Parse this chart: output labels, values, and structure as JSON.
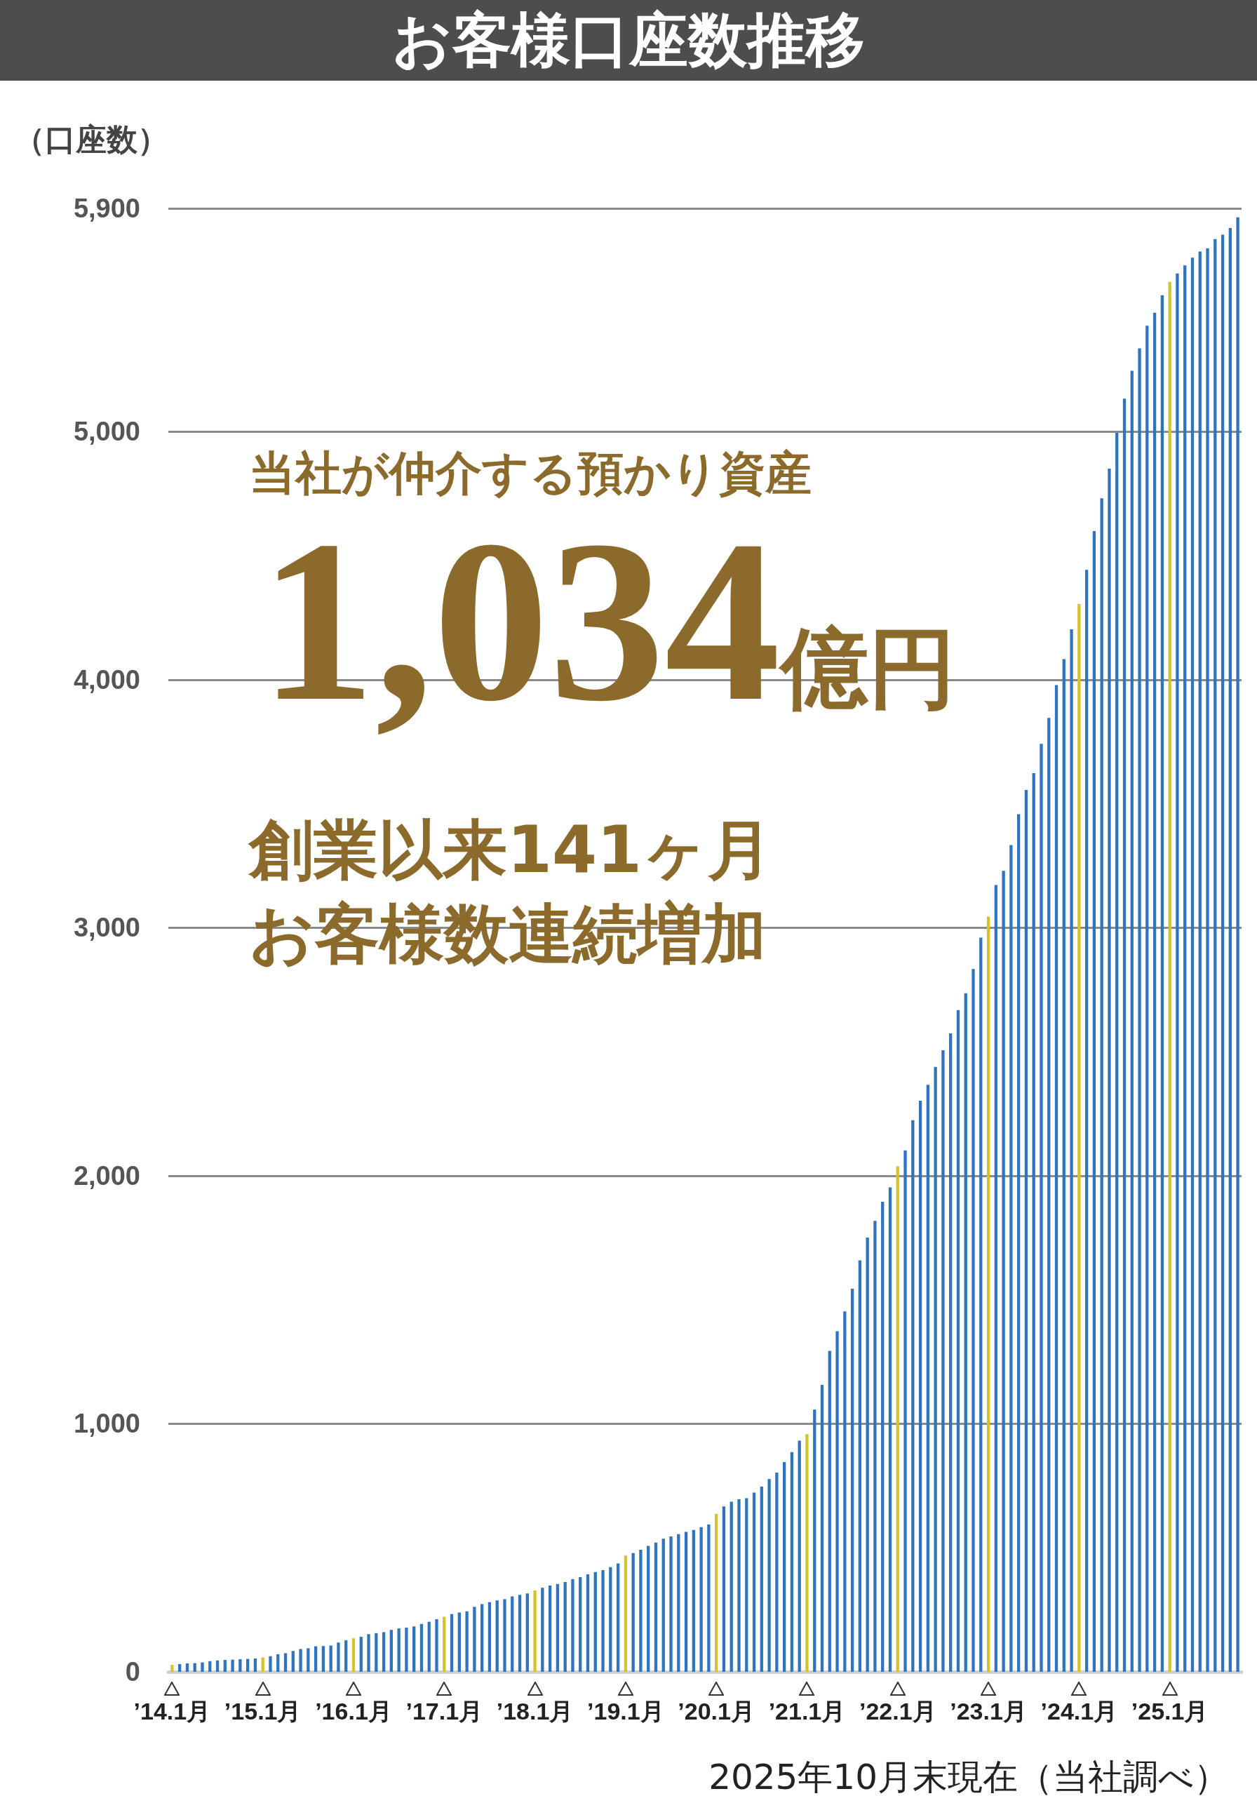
{
  "chart_data": {
    "type": "bar",
    "title": "お客様口座数推移",
    "ylabel": "（口座数）",
    "annotations": [
      "当社が仲介する預かり資産",
      "1,034億円",
      "創業以来141ヶ月",
      "お客様数連続増加",
      "2025年10月末現在（当社調べ）"
    ],
    "categories": [
      "’14.1月",
      null,
      null,
      null,
      null,
      null,
      null,
      null,
      null,
      null,
      null,
      null,
      "’15.1月",
      null,
      null,
      null,
      null,
      null,
      null,
      null,
      null,
      null,
      null,
      null,
      "’16.1月",
      null,
      null,
      null,
      null,
      null,
      null,
      null,
      null,
      null,
      null,
      null,
      "’17.1月",
      null,
      null,
      null,
      null,
      null,
      null,
      null,
      null,
      null,
      null,
      null,
      "’18.1月",
      null,
      null,
      null,
      null,
      null,
      null,
      null,
      null,
      null,
      null,
      null,
      "’19.1月",
      null,
      null,
      null,
      null,
      null,
      null,
      null,
      null,
      null,
      null,
      null,
      "’20.1月",
      null,
      null,
      null,
      null,
      null,
      null,
      null,
      null,
      null,
      null,
      null,
      "’21.1月",
      null,
      null,
      null,
      null,
      null,
      null,
      null,
      null,
      null,
      null,
      null,
      "’22.1月",
      null,
      null,
      null,
      null,
      null,
      null,
      null,
      null,
      null,
      null,
      null,
      "’23.1月",
      null,
      null,
      null,
      null,
      null,
      null,
      null,
      null,
      null,
      null,
      null,
      "’24.1月",
      null,
      null,
      null,
      null,
      null,
      null,
      null,
      null,
      null,
      null,
      null,
      "’25.1月",
      null,
      null,
      null,
      null,
      null,
      null,
      null,
      null,
      null
    ],
    "values": [
      28,
      31,
      34,
      35,
      38,
      43,
      46,
      48,
      49,
      51,
      52,
      54,
      58,
      63,
      71,
      75,
      84,
      92,
      95,
      103,
      104,
      106,
      118,
      127,
      135,
      141,
      152,
      156,
      160,
      169,
      175,
      178,
      183,
      193,
      202,
      212,
      222,
      233,
      239,
      244,
      262,
      273,
      281,
      288,
      293,
      304,
      310,
      316,
      328,
      339,
      348,
      354,
      362,
      373,
      382,
      393,
      402,
      410,
      422,
      437,
      469,
      479,
      492,
      508,
      521,
      537,
      546,
      555,
      564,
      572,
      583,
      594,
      637,
      667,
      686,
      696,
      700,
      723,
      747,
      777,
      803,
      846,
      886,
      932,
      958,
      1057,
      1157,
      1294,
      1373,
      1453,
      1544,
      1659,
      1751,
      1818,
      1895,
      1953,
      2038,
      2102,
      2224,
      2302,
      2367,
      2439,
      2506,
      2574,
      2668,
      2736,
      2833,
      2960,
      3045,
      3172,
      3229,
      3333,
      3458,
      3555,
      3623,
      3741,
      3846,
      3978,
      4083,
      4203,
      4305,
      4443,
      4599,
      4731,
      4851,
      4995,
      5133,
      5245,
      5336,
      5427,
      5479,
      5549,
      5604,
      5638,
      5670,
      5701,
      5726,
      5739,
      5776,
      5794,
      5821,
      5864
    ],
    "colors": [
      "#d2c42c",
      "#2f74c0",
      "#2f74c0",
      "#2f74c0",
      "#2f74c0",
      "#2f74c0",
      "#2f74c0",
      "#2f74c0",
      "#2f74c0",
      "#2f74c0",
      "#2f74c0",
      "#2f74c0",
      "#d2c42c",
      "#2f74c0",
      "#2f74c0",
      "#2f74c0",
      "#2f74c0",
      "#2f74c0",
      "#2f74c0",
      "#2f74c0",
      "#2f74c0",
      "#2f74c0",
      "#2f74c0",
      "#2f74c0",
      "#d2c42c",
      "#2f74c0",
      "#2f74c0",
      "#2f74c0",
      "#2f74c0",
      "#2f74c0",
      "#2f74c0",
      "#2f74c0",
      "#2f74c0",
      "#2f74c0",
      "#2f74c0",
      "#2f74c0",
      "#d2c42c",
      "#2f74c0",
      "#2f74c0",
      "#2f74c0",
      "#2f74c0",
      "#2f74c0",
      "#2f74c0",
      "#2f74c0",
      "#2f74c0",
      "#2f74c0",
      "#2f74c0",
      "#2f74c0",
      "#d2c42c",
      "#2f74c0",
      "#2f74c0",
      "#2f74c0",
      "#2f74c0",
      "#2f74c0",
      "#2f74c0",
      "#2f74c0",
      "#2f74c0",
      "#2f74c0",
      "#2f74c0",
      "#2f74c0",
      "#d2c42c",
      "#2f74c0",
      "#2f74c0",
      "#2f74c0",
      "#2f74c0",
      "#2f74c0",
      "#2f74c0",
      "#2f74c0",
      "#2f74c0",
      "#2f74c0",
      "#2f74c0",
      "#2f74c0",
      "#d2c42c",
      "#2f74c0",
      "#2f74c0",
      "#2f74c0",
      "#2f74c0",
      "#2f74c0",
      "#2f74c0",
      "#2f74c0",
      "#2f74c0",
      "#2f74c0",
      "#2f74c0",
      "#2f74c0",
      "#d2c42c",
      "#2f74c0",
      "#2f74c0",
      "#2f74c0",
      "#2f74c0",
      "#2f74c0",
      "#2f74c0",
      "#2f74c0",
      "#2f74c0",
      "#2f74c0",
      "#2f74c0",
      "#2f74c0",
      "#d2c42c",
      "#2f74c0",
      "#2f74c0",
      "#2f74c0",
      "#2f74c0",
      "#2f74c0",
      "#2f74c0",
      "#2f74c0",
      "#2f74c0",
      "#2f74c0",
      "#2f74c0",
      "#2f74c0",
      "#d2c42c",
      "#2f74c0",
      "#2f74c0",
      "#2f74c0",
      "#2f74c0",
      "#2f74c0",
      "#2f74c0",
      "#2f74c0",
      "#2f74c0",
      "#2f74c0",
      "#2f74c0",
      "#2f74c0",
      "#d2c42c",
      "#2f74c0",
      "#2f74c0",
      "#2f74c0",
      "#2f74c0",
      "#2f74c0",
      "#2f74c0",
      "#2f74c0",
      "#2f74c0",
      "#2f74c0",
      "#2f74c0",
      "#2f74c0",
      "#d2c42c",
      "#2f74c0",
      "#2f74c0",
      "#2f74c0",
      "#2f74c0",
      "#2f74c0",
      "#2f74c0",
      "#2f74c0",
      "#2f74c0",
      "#2f74c0"
    ],
    "ylim": [
      0,
      5900
    ],
    "yticks": [
      0,
      {
        "value": 1000,
        "label": "1,000"
      },
      {
        "value": 2000,
        "label": "2,000"
      },
      {
        "value": 3000,
        "label": "3,000"
      },
      {
        "value": 4000,
        "label": "4,000"
      },
      {
        "value": 5000,
        "label": "5,000"
      },
      {
        "value": 5900,
        "label": "5,900"
      }
    ],
    "grid": "y"
  }
}
